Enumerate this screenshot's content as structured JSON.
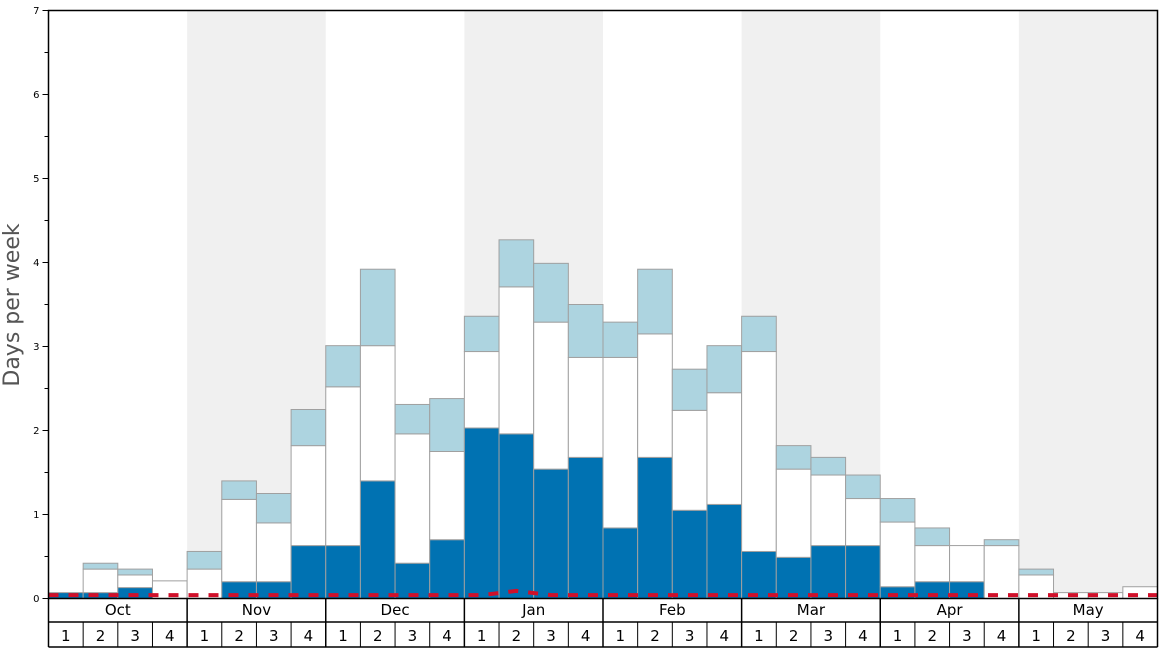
{
  "chart_data": {
    "type": "bar",
    "ylabel": "Days per week",
    "ylim": [
      0,
      7
    ],
    "y_ticks": [
      "0",
      "1",
      "2",
      "3",
      "4",
      "5",
      "6",
      "7"
    ],
    "months": [
      "Oct",
      "Nov",
      "Dec",
      "Jan",
      "Feb",
      "Mar",
      "Apr",
      "May"
    ],
    "weeks": [
      "1",
      "2",
      "3",
      "4"
    ],
    "shaded_months": [
      "Nov",
      "Jan",
      "Mar",
      "May"
    ],
    "colors": {
      "dark_segment": "#0072b2",
      "mid_segment": "#ffffff",
      "light_segment": "#add4e0",
      "reference_line": "#d0102a",
      "shade": "#f0f0f0",
      "bar_outline": "#a0a0a0"
    },
    "series": [
      {
        "role": "dark",
        "values": [
          0.07,
          0.07,
          0.13,
          0,
          0,
          0.2,
          0.2,
          0.63,
          0.63,
          1.4,
          0.42,
          0.7,
          2.03,
          1.96,
          1.54,
          1.68,
          0.84,
          1.68,
          1.05,
          1.12,
          0.56,
          0.49,
          0.63,
          0.63,
          0.14,
          0.2,
          0.2,
          0,
          0,
          0,
          0,
          0
        ]
      },
      {
        "role": "mid",
        "values": [
          0,
          0.28,
          0.15,
          0.21,
          0.35,
          0.98,
          0.7,
          1.19,
          1.89,
          1.61,
          1.54,
          1.05,
          0.91,
          1.75,
          1.75,
          1.19,
          2.03,
          1.47,
          1.19,
          1.33,
          2.38,
          1.05,
          0.84,
          0.56,
          0.77,
          0.43,
          0.43,
          0.63,
          0.28,
          0.07,
          0.07,
          0.14
        ]
      },
      {
        "role": "light",
        "values": [
          0,
          0.07,
          0.07,
          0,
          0.21,
          0.22,
          0.35,
          0.43,
          0.49,
          0.91,
          0.35,
          0.63,
          0.42,
          0.56,
          0.7,
          0.63,
          0.42,
          0.77,
          0.49,
          0.56,
          0.42,
          0.28,
          0.21,
          0.28,
          0.28,
          0.21,
          0,
          0.07,
          0.07,
          0,
          0,
          0
        ]
      }
    ],
    "reference_line": [
      0.04,
      0.04,
      0.04,
      0.04,
      0.04,
      0.04,
      0.04,
      0.04,
      0.04,
      0.04,
      0.04,
      0.04,
      0.04,
      0.09,
      0.04,
      0.04,
      0.04,
      0.04,
      0.04,
      0.04,
      0.04,
      0.04,
      0.04,
      0.04,
      0.04,
      0.04,
      0.04,
      0.04,
      0.04,
      0.04,
      0.04,
      0.04
    ]
  }
}
